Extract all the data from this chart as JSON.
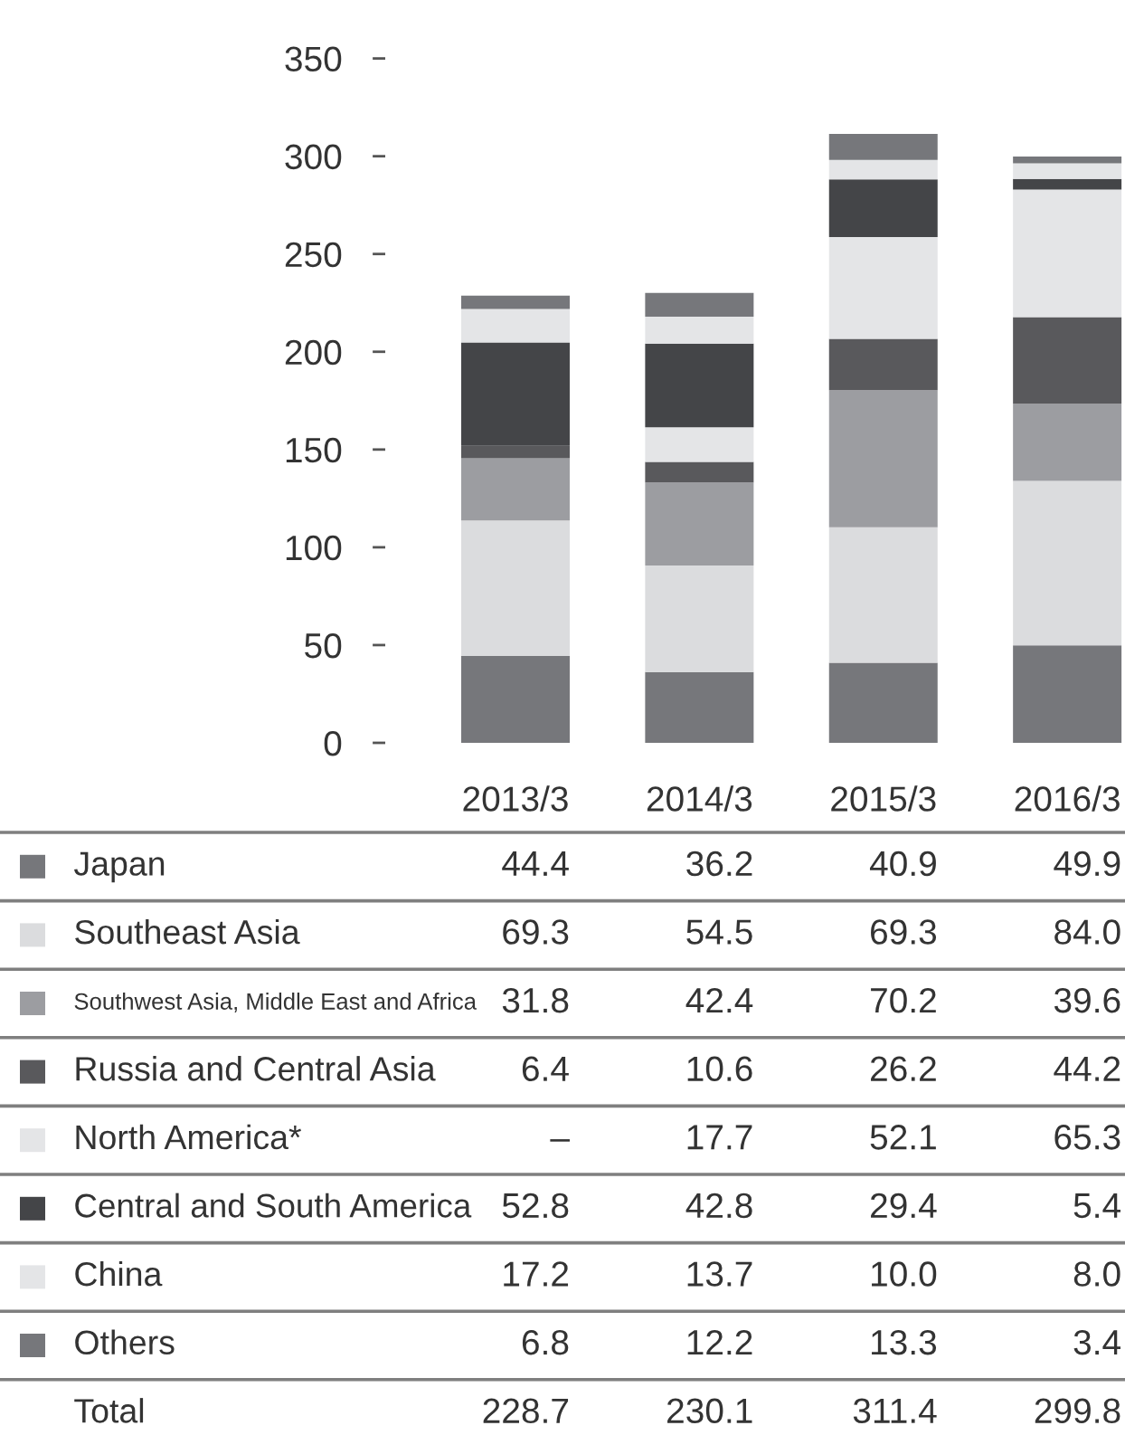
{
  "chart_data": {
    "type": "bar",
    "stacked": true,
    "categories": [
      "2013/3",
      "2014/3",
      "2015/3",
      "2016/3"
    ],
    "series": [
      {
        "name": "Japan",
        "color": "#76777b",
        "values": [
          44.4,
          36.2,
          40.9,
          49.9
        ],
        "value_labels": [
          "44.4",
          "36.2",
          "40.9",
          "49.9"
        ]
      },
      {
        "name": "Southeast Asia",
        "color": "#dbdcde",
        "values": [
          69.3,
          54.5,
          69.3,
          84.0
        ],
        "value_labels": [
          "69.3",
          "54.5",
          "69.3",
          "84.0"
        ]
      },
      {
        "name": "Southwest Asia, Middle East and Africa",
        "color": "#9c9da1",
        "values": [
          31.8,
          42.4,
          70.2,
          39.6
        ],
        "value_labels": [
          "31.8",
          "42.4",
          "70.2",
          "39.6"
        ]
      },
      {
        "name": "Russia and Central Asia",
        "color": "#59595c",
        "values": [
          6.4,
          10.6,
          26.2,
          44.2
        ],
        "value_labels": [
          "6.4",
          "10.6",
          "26.2",
          "44.2"
        ]
      },
      {
        "name": "North America*",
        "color": "#e4e5e7",
        "values": [
          null,
          17.7,
          52.1,
          65.3
        ],
        "value_labels": [
          "–",
          "17.7",
          "52.1",
          "65.3"
        ]
      },
      {
        "name": "Central and South America",
        "color": "#444548",
        "values": [
          52.8,
          42.8,
          29.4,
          5.4
        ],
        "value_labels": [
          "52.8",
          "42.8",
          "29.4",
          "5.4"
        ]
      },
      {
        "name": "China",
        "color": "#e4e5e7",
        "values": [
          17.2,
          13.7,
          10.0,
          8.0
        ],
        "value_labels": [
          "17.2",
          "13.7",
          "10.0",
          "8.0"
        ]
      },
      {
        "name": "Others",
        "color": "#76777b",
        "values": [
          6.8,
          12.2,
          13.3,
          3.4
        ],
        "value_labels": [
          "6.8",
          "12.2",
          "13.3",
          "3.4"
        ]
      }
    ],
    "annotations": [
      "Total",
      "228.7",
      "230.1",
      "311.4",
      "299.8"
    ],
    "ylim": [
      0,
      350
    ],
    "yticks": [
      0,
      50,
      100,
      150,
      200,
      250,
      300,
      350
    ],
    "legend": "bottom"
  }
}
